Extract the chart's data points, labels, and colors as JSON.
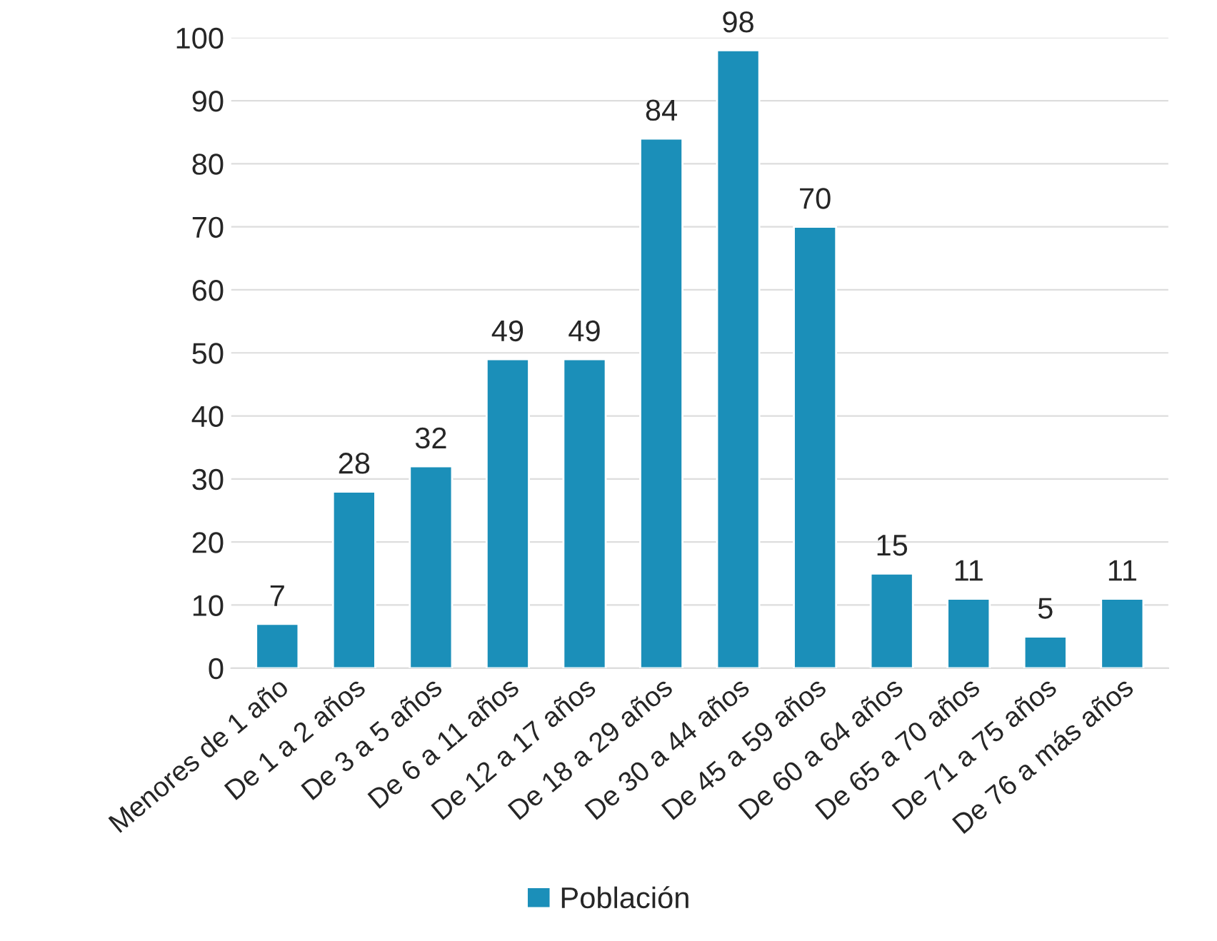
{
  "chart_data": {
    "type": "bar",
    "categories": [
      "Menores de 1 año",
      "De 1 a 2 años",
      "De 3 a 5 años",
      "De 6 a 11 años",
      "De 12 a 17 años",
      "De 18 a 29 años",
      "De 30 a 44 años",
      "De 45 a 59 años",
      "De 60 a 64 años",
      "De 65 a 70 años",
      "De 71 a 75 años",
      "De 76 a más años"
    ],
    "series": [
      {
        "name": "Población",
        "color": "#1b8fb9",
        "values": [
          7,
          28,
          32,
          49,
          49,
          84,
          98,
          70,
          15,
          11,
          5,
          11
        ]
      }
    ],
    "ylim": [
      0,
      100
    ],
    "yticks": [
      0,
      10,
      20,
      30,
      40,
      50,
      60,
      70,
      80,
      90,
      100
    ],
    "grid": "y",
    "legend": "bottom",
    "data_labels": true
  }
}
